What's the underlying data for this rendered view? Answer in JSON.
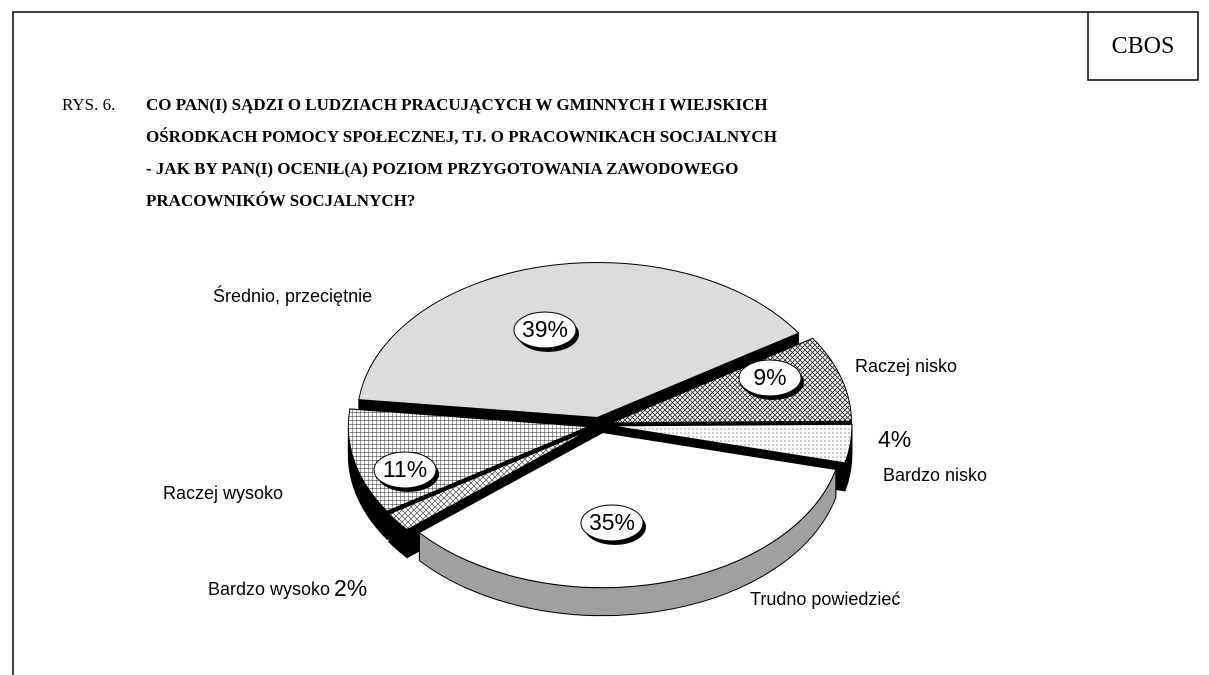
{
  "chart_data": {
    "type": "pie",
    "corner_label": "CBOS",
    "figure_label": "RYS. 6.",
    "title": [
      "CO PAN(I) SĄDZI O LUDZIACH PRACUJĄCYCH W  GMINNYCH I WIEJSKICH",
      "OŚRODKACH POMOCY SPOŁECZNEJ, TJ. O PRACOWNIKACH SOCJALNYCH",
      "- JAK BY PAN(I) OCENIŁ(A) POZIOM PRZYGOTOWANIA ZAWODOWEGO",
      "PRACOWNIKÓW SOCJALNYCH?"
    ],
    "categories": [
      "Średnio, przeciętnie",
      "Raczej nisko",
      "Bardzo nisko",
      "Trudno powiedzieć",
      "Bardzo wysoko",
      "Raczej wysoko"
    ],
    "values": [
      39,
      9,
      4,
      35,
      2,
      11
    ],
    "value_labels": [
      "39%",
      "9%",
      "4%",
      "35%",
      "2%",
      "11%"
    ],
    "colors": [
      "#dcdcdc",
      "#ffffff",
      "#f2f2f2",
      "#ffffff",
      "#ffffff",
      "#ffffff"
    ],
    "patterns": [
      null,
      "hatch",
      "dots",
      null,
      "cross",
      "grid"
    ],
    "side_colors": [
      "#000000",
      "#000000",
      "#000000",
      "#a0a0a0",
      "#000000",
      "#000000"
    ]
  }
}
